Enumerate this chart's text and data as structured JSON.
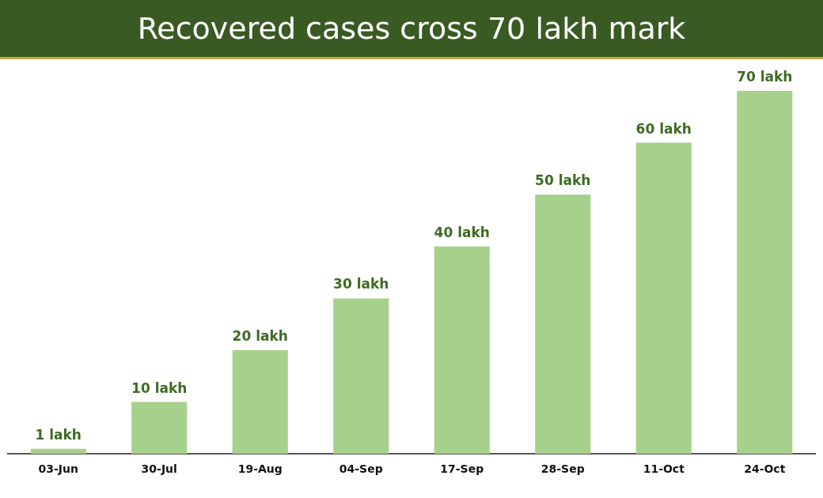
{
  "chart_data": {
    "type": "bar",
    "title": "Recovered cases cross 70 lakh mark",
    "categories": [
      "03-Jun",
      "30-Jul",
      "19-Aug",
      "04-Sep",
      "17-Sep",
      "28-Sep",
      "11-Oct",
      "24-Oct"
    ],
    "values": [
      1,
      10,
      20,
      30,
      40,
      50,
      60,
      70
    ],
    "value_labels": [
      "1 lakh",
      "10 lakh",
      "20 lakh",
      "30 lakh",
      "40 lakh",
      "50 lakh",
      "60 lakh",
      "70 lakh"
    ],
    "color": "#a6d18a",
    "grid": false,
    "legend": false
  }
}
